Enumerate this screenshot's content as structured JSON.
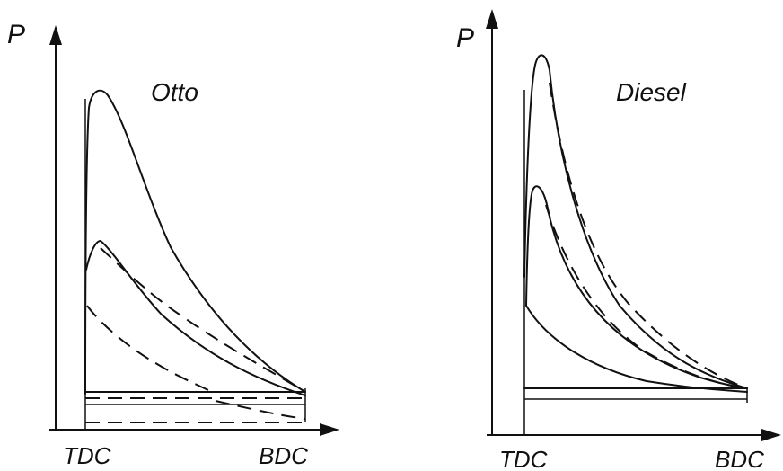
{
  "diagrams": [
    {
      "id": "otto",
      "title": "Otto",
      "y_axis_label": "P",
      "x_start_label": "TDC",
      "x_end_label": "BDC"
    },
    {
      "id": "diesel",
      "title": "Diesel",
      "y_axis_label": "P",
      "x_start_label": "TDC",
      "x_end_label": "BDC"
    }
  ]
}
